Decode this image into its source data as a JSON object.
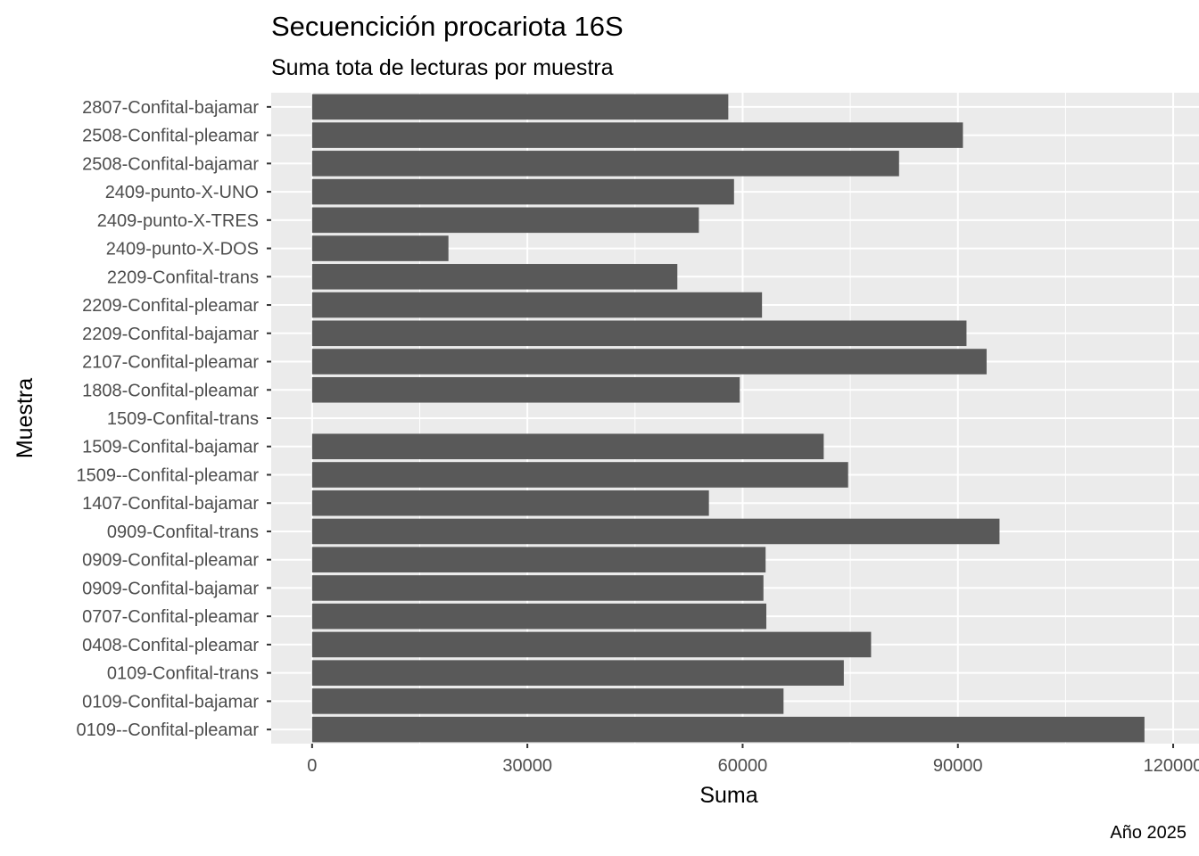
{
  "chart_data": {
    "type": "bar",
    "orientation": "horizontal",
    "title": "Secuencición procariota 16S",
    "subtitle": "Suma tota de lecturas por muestra",
    "xlabel": "Suma",
    "ylabel": "Muestra",
    "caption": "Año 2025",
    "xticks": [
      0,
      30000,
      60000,
      90000,
      120000
    ],
    "xtick_labels": [
      "0",
      "30000",
      "60000",
      "90000",
      "120000"
    ],
    "xlim": [
      -5700,
      123600
    ],
    "grid": true,
    "bar_color": "#595959",
    "panel_color": "#EBEBEB",
    "categories": [
      "2807-Confital-bajamar",
      "2508-Confital-pleamar",
      "2508-Confital-bajamar",
      "2409-punto-X-UNO",
      "2409-punto-X-TRES",
      "2409-punto-X-DOS",
      "2209-Confital-trans",
      "2209-Confital-pleamar",
      "2209-Confital-bajamar",
      "2107-Confital-pleamar",
      "1808-Confital-pleamar",
      "1509-Confital-trans",
      "1509-Confital-bajamar",
      "1509--Confital-pleamar",
      "1407-Confital-bajamar",
      "0909-Confital-trans",
      "0909-Confital-pleamar",
      "0909-Confital-bajamar",
      "0707-Confital-pleamar",
      "0408-Confital-pleamar",
      "0109-Confital-trans",
      "0109-Confital-bajamar",
      "0109--Confital-pleamar"
    ],
    "values": [
      58000,
      90700,
      81800,
      58800,
      53900,
      19000,
      50900,
      62700,
      91200,
      94000,
      59600,
      0,
      71300,
      74700,
      55300,
      95800,
      63200,
      62900,
      63300,
      77900,
      74100,
      65700,
      116000
    ]
  }
}
